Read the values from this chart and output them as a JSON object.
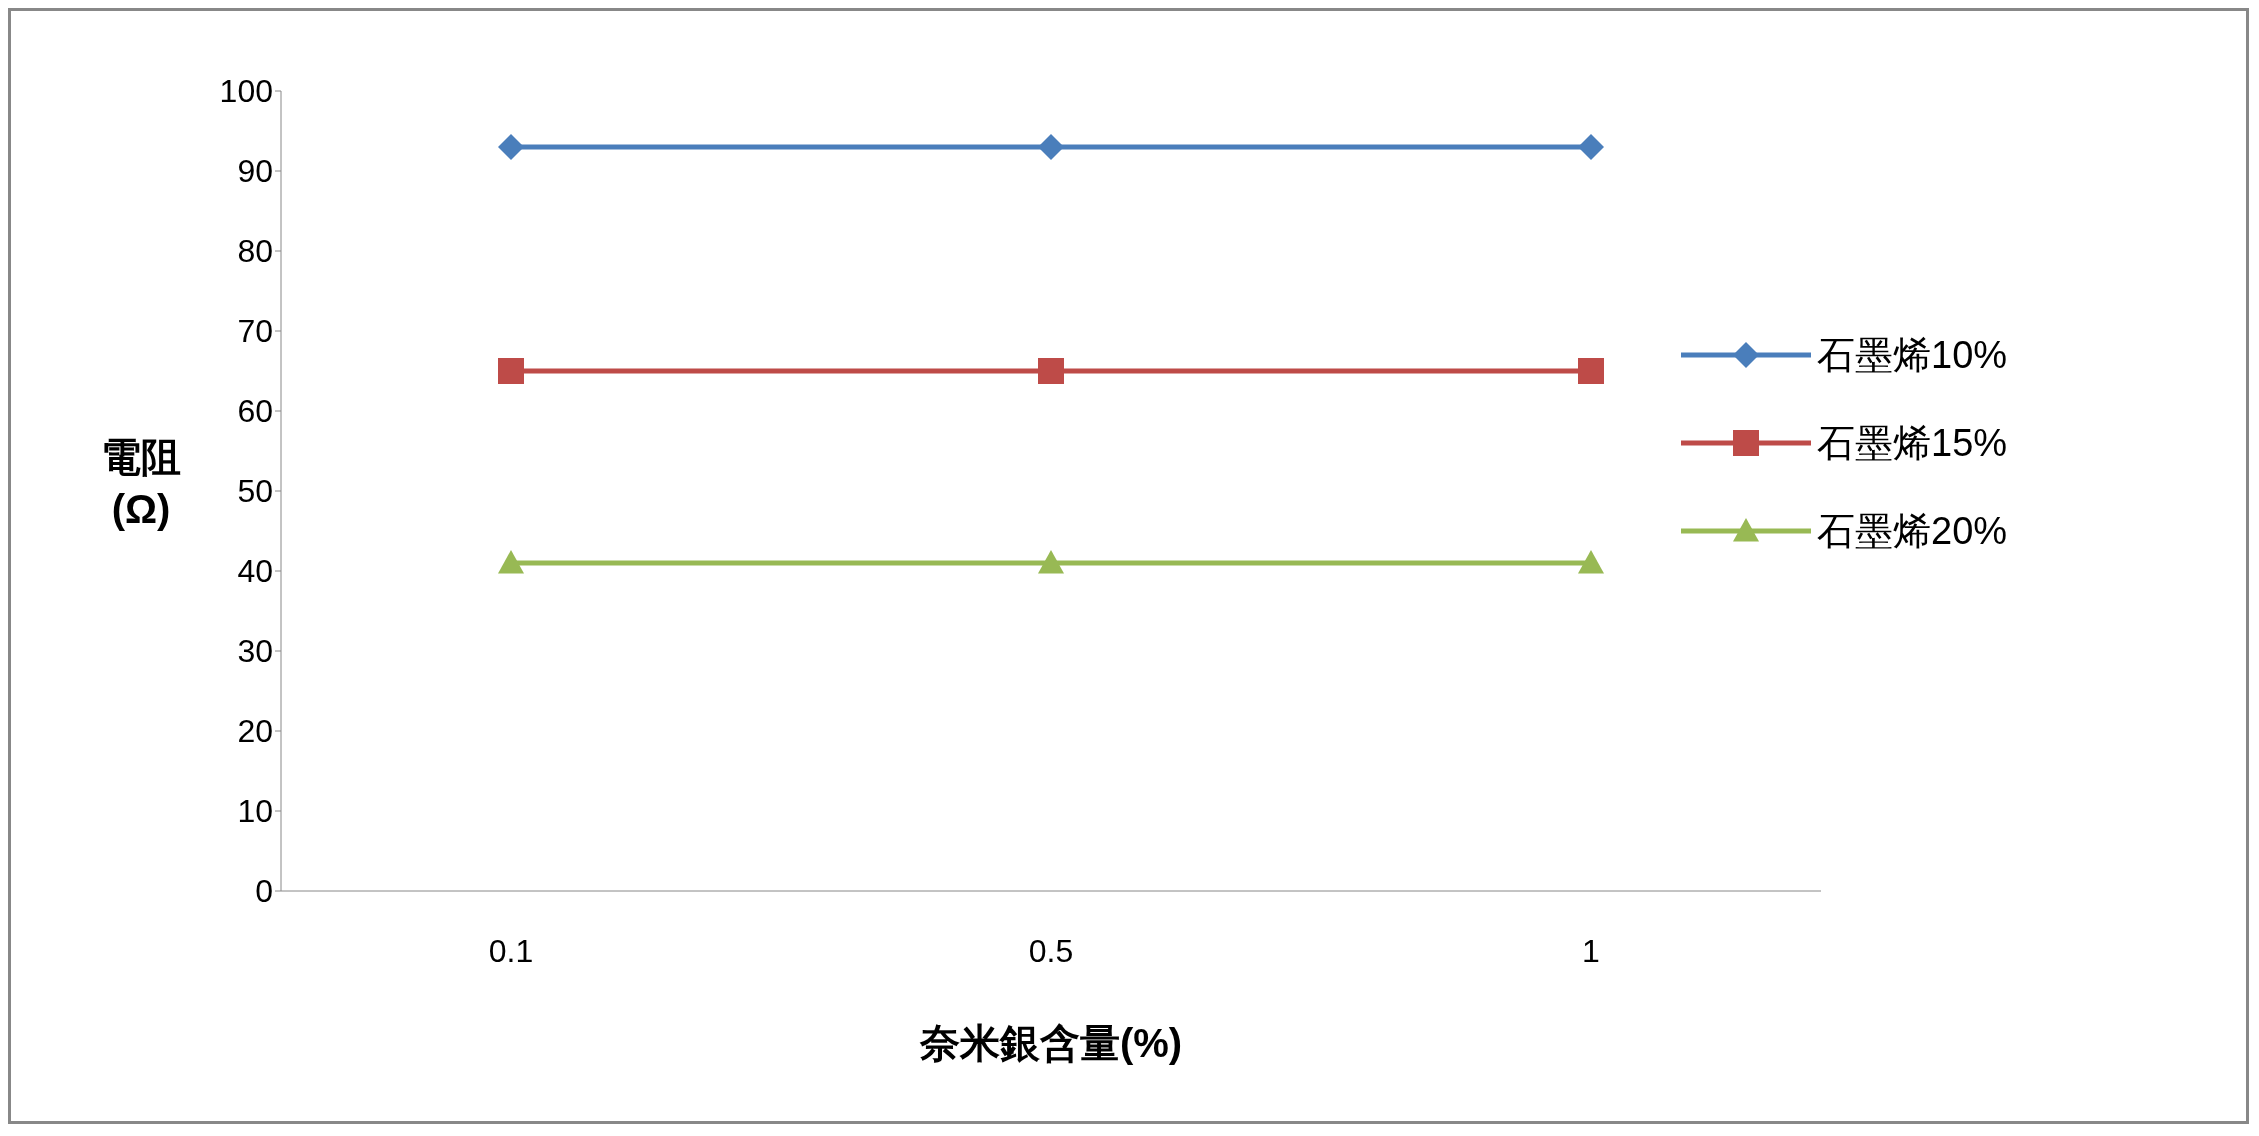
{
  "chart_data": {
    "type": "line",
    "xlabel": "奈米銀含量(%)",
    "ylabel": "電阻(Ω)",
    "categories": [
      "0.1",
      "0.5",
      "1"
    ],
    "series": [
      {
        "name": "石墨烯10%",
        "color": "#4a7ebb",
        "values": [
          93,
          93,
          93
        ],
        "marker": "diamond"
      },
      {
        "name": "石墨烯15%",
        "color": "#be4b48",
        "values": [
          65,
          65,
          65
        ],
        "marker": "square"
      },
      {
        "name": "石墨烯20%",
        "color": "#98b954",
        "values": [
          41,
          41,
          41
        ],
        "marker": "triangle"
      }
    ],
    "ylim": [
      0,
      100
    ],
    "yticks": [
      0,
      10,
      20,
      30,
      40,
      50,
      60,
      70,
      80,
      90,
      100
    ],
    "grid": false,
    "legend": "right"
  }
}
